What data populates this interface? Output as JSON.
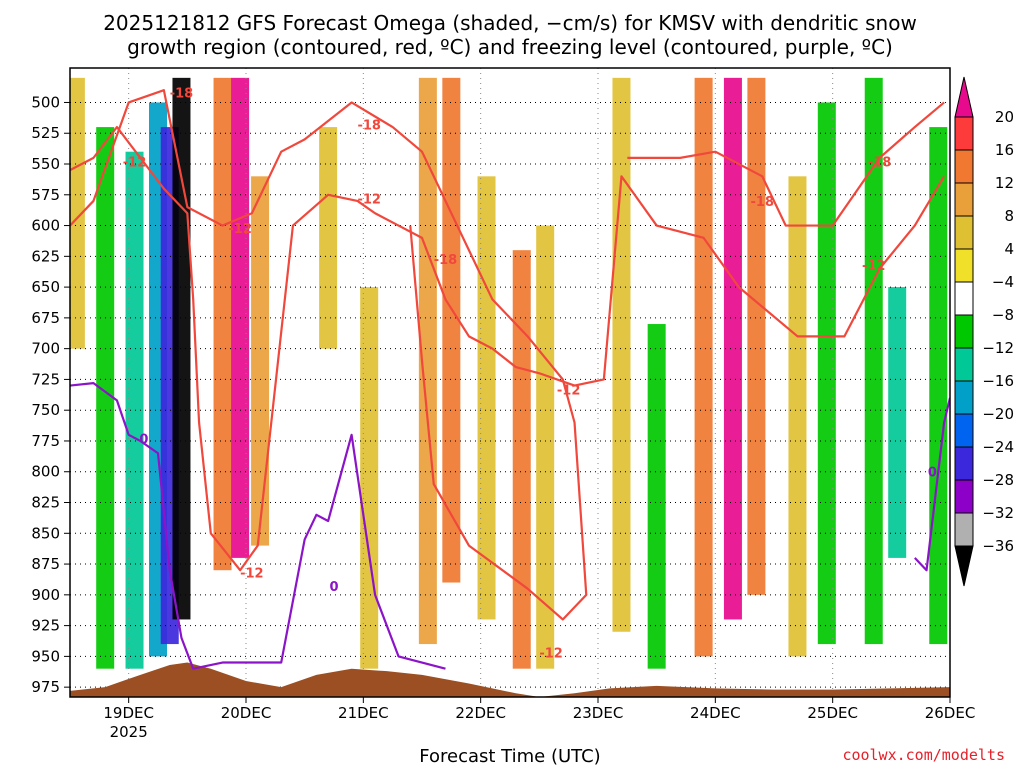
{
  "chart_data": {
    "type": "heatmap",
    "title_line1": "2025121812 GFS Forecast Omega (shaded, −cm/s) for KMSV with dendritic snow",
    "title_line2": "growth region (contoured, red, ºC) and freezing level (contoured, purple, ºC)",
    "xlabel": "Forecast Time (UTC)",
    "credit": "coolwx.com/modelts",
    "x_ticks": [
      "19DEC",
      "20DEC",
      "21DEC",
      "22DEC",
      "23DEC",
      "24DEC",
      "25DEC",
      "26DEC"
    ],
    "x_tick_day_offsets": [
      0.5,
      1.5,
      2.5,
      3.5,
      4.5,
      5.5,
      6.5,
      7.5
    ],
    "x_year_label": "2025",
    "x_range_days": [
      0,
      7.5
    ],
    "y_ticks": [
      500,
      525,
      550,
      575,
      600,
      625,
      650,
      675,
      700,
      725,
      750,
      775,
      800,
      825,
      850,
      875,
      900,
      925,
      950,
      975
    ],
    "y_range_hpa": [
      472,
      983
    ],
    "colorbar_labels": [
      "20",
      "16",
      "12",
      "8",
      "4",
      "−4",
      "−8",
      "−12",
      "−16",
      "−20",
      "−24",
      "−28",
      "−32",
      "−36"
    ],
    "colorbar_colors": [
      "#f1428a",
      "#fe3b3b",
      "#f07830",
      "#e9a03a",
      "#dfc033",
      "#f0e029",
      "#ffffff",
      "#00c800",
      "#00c896",
      "#00a0c8",
      "#0064f0",
      "#3c28dc",
      "#8c00c8",
      "#b0b0b0"
    ],
    "colorbar_extend_top": "#e70a8c",
    "colorbar_extend_bottom": "#000000",
    "omega_columns": [
      {
        "day": 0.05,
        "p_top": 480,
        "p_bot": 700,
        "value": 6
      },
      {
        "day": 0.3,
        "p_top": 520,
        "p_bot": 960,
        "value": -8
      },
      {
        "day": 0.55,
        "p_top": 540,
        "p_bot": 960,
        "value": -12
      },
      {
        "day": 0.75,
        "p_top": 500,
        "p_bot": 950,
        "value": -16
      },
      {
        "day": 0.85,
        "p_top": 520,
        "p_bot": 940,
        "value": -24
      },
      {
        "day": 0.95,
        "p_top": 480,
        "p_bot": 920,
        "value": -36
      },
      {
        "day": 1.3,
        "p_top": 480,
        "p_bot": 880,
        "value": 14
      },
      {
        "day": 1.45,
        "p_top": 480,
        "p_bot": 870,
        "value": 20
      },
      {
        "day": 1.62,
        "p_top": 560,
        "p_bot": 860,
        "value": 10
      },
      {
        "day": 2.2,
        "p_top": 520,
        "p_bot": 700,
        "value": 6
      },
      {
        "day": 2.55,
        "p_top": 650,
        "p_bot": 960,
        "value": 6
      },
      {
        "day": 3.05,
        "p_top": 480,
        "p_bot": 940,
        "value": 12
      },
      {
        "day": 3.25,
        "p_top": 480,
        "p_bot": 890,
        "value": 16
      },
      {
        "day": 3.55,
        "p_top": 560,
        "p_bot": 920,
        "value": 8
      },
      {
        "day": 3.85,
        "p_top": 620,
        "p_bot": 960,
        "value": 14
      },
      {
        "day": 4.05,
        "p_top": 600,
        "p_bot": 960,
        "value": 6
      },
      {
        "day": 4.7,
        "p_top": 480,
        "p_bot": 930,
        "value": 6
      },
      {
        "day": 5.0,
        "p_top": 680,
        "p_bot": 960,
        "value": -8
      },
      {
        "day": 5.4,
        "p_top": 480,
        "p_bot": 950,
        "value": 16
      },
      {
        "day": 5.65,
        "p_top": 480,
        "p_bot": 920,
        "value": 20
      },
      {
        "day": 5.85,
        "p_top": 480,
        "p_bot": 900,
        "value": 16
      },
      {
        "day": 6.2,
        "p_top": 560,
        "p_bot": 950,
        "value": 6
      },
      {
        "day": 6.45,
        "p_top": 500,
        "p_bot": 940,
        "value": -8
      },
      {
        "day": 6.85,
        "p_top": 480,
        "p_bot": 940,
        "value": -8
      },
      {
        "day": 7.05,
        "p_top": 650,
        "p_bot": 870,
        "value": -12
      },
      {
        "day": 7.4,
        "p_top": 520,
        "p_bot": 940,
        "value": -8
      }
    ],
    "dgz_minus12_label": "-12",
    "dgz_minus18_label": "-18",
    "freezing_label": "0",
    "dgz_minus12_contour": [
      [
        0,
        555
      ],
      [
        0.2,
        545
      ],
      [
        0.4,
        520
      ],
      [
        0.6,
        545
      ],
      [
        0.8,
        570
      ],
      [
        1.0,
        590
      ],
      [
        1.05,
        660
      ],
      [
        1.1,
        760
      ],
      [
        1.2,
        850
      ],
      [
        1.45,
        880
      ],
      [
        1.6,
        860
      ],
      [
        1.9,
        600
      ],
      [
        2.2,
        575
      ],
      [
        2.45,
        580
      ],
      [
        2.6,
        590
      ],
      [
        2.8,
        600
      ],
      [
        3.0,
        610
      ],
      [
        3.2,
        660
      ],
      [
        3.4,
        690
      ],
      [
        3.6,
        700
      ],
      [
        3.8,
        715
      ],
      [
        4.0,
        720
      ],
      [
        4.3,
        730
      ],
      [
        4.55,
        725
      ],
      [
        4.7,
        560
      ],
      [
        5.0,
        600
      ],
      [
        5.4,
        610
      ],
      [
        5.7,
        650
      ],
      [
        6.2,
        690
      ],
      [
        6.6,
        690
      ],
      [
        6.9,
        635
      ],
      [
        7.2,
        600
      ],
      [
        7.45,
        560
      ]
    ],
    "dgz_minus18_contour": [
      [
        0,
        600
      ],
      [
        0.2,
        580
      ],
      [
        0.5,
        500
      ],
      [
        0.8,
        490
      ],
      [
        1.0,
        585
      ],
      [
        1.3,
        600
      ],
      [
        1.55,
        590
      ],
      [
        1.8,
        540
      ],
      [
        2.0,
        530
      ],
      [
        2.4,
        500
      ],
      [
        2.75,
        520
      ],
      [
        3.0,
        540
      ],
      [
        3.3,
        600
      ],
      [
        3.6,
        660
      ],
      [
        3.9,
        690
      ],
      [
        4.2,
        725
      ],
      [
        4.3,
        760
      ],
      [
        4.4,
        900
      ],
      [
        4.2,
        920
      ],
      [
        3.9,
        895
      ],
      [
        3.4,
        860
      ],
      [
        3.1,
        810
      ],
      [
        3.0,
        710
      ],
      [
        2.9,
        600
      ]
    ],
    "dgz_minus18_right_contour": [
      [
        4.75,
        545
      ],
      [
        5.2,
        545
      ],
      [
        5.5,
        540
      ],
      [
        5.9,
        560
      ],
      [
        6.1,
        600
      ],
      [
        6.5,
        600
      ],
      [
        6.9,
        545
      ],
      [
        7.2,
        520
      ],
      [
        7.45,
        500
      ]
    ],
    "freezing_contour": [
      [
        0,
        730
      ],
      [
        0.2,
        728
      ],
      [
        0.4,
        742
      ],
      [
        0.5,
        770
      ],
      [
        0.6,
        775
      ],
      [
        0.75,
        785
      ],
      [
        0.85,
        880
      ],
      [
        0.95,
        935
      ],
      [
        1.05,
        960
      ],
      [
        1.3,
        955
      ],
      [
        1.6,
        955
      ],
      [
        1.8,
        955
      ],
      [
        2.0,
        855
      ],
      [
        2.1,
        835
      ],
      [
        2.2,
        840
      ],
      [
        2.4,
        770
      ],
      [
        2.6,
        900
      ],
      [
        2.8,
        950
      ],
      [
        3.0,
        955
      ],
      [
        3.2,
        960
      ]
    ],
    "freezing_right_contour": [
      [
        7.2,
        870
      ],
      [
        7.3,
        880
      ],
      [
        7.45,
        760
      ],
      [
        7.5,
        740
      ]
    ],
    "terrain_pressure": [
      [
        0,
        978
      ],
      [
        0.3,
        975
      ],
      [
        0.6,
        965
      ],
      [
        0.85,
        957
      ],
      [
        1.0,
        955
      ],
      [
        1.2,
        960
      ],
      [
        1.5,
        970
      ],
      [
        1.8,
        975
      ],
      [
        2.1,
        965
      ],
      [
        2.4,
        960
      ],
      [
        2.7,
        962
      ],
      [
        3.0,
        965
      ],
      [
        3.4,
        972
      ],
      [
        3.8,
        980
      ],
      [
        4.0,
        983
      ],
      [
        4.3,
        980
      ],
      [
        4.6,
        976
      ],
      [
        5.0,
        974
      ],
      [
        5.5,
        976
      ],
      [
        6.0,
        977
      ],
      [
        6.5,
        977
      ],
      [
        7.0,
        976
      ],
      [
        7.5,
        975
      ]
    ]
  }
}
